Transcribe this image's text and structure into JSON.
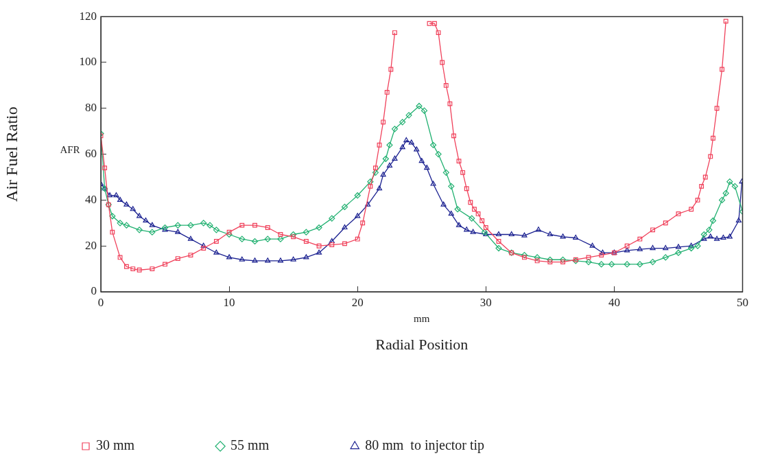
{
  "chart_data": {
    "type": "line",
    "xlabel": "Radial Position",
    "ylabel": "Air Fuel Ratio",
    "annotations": [
      "AFR",
      "mm"
    ],
    "xlim": [
      0,
      50
    ],
    "xticks": [
      0,
      10,
      20,
      30,
      40,
      50
    ],
    "ylim": [
      0,
      120
    ],
    "yticks": [
      0,
      20,
      40,
      60,
      80,
      100,
      120
    ],
    "grid": false,
    "legend": "bottom",
    "line_style": "solid",
    "series": [
      {
        "name": "30 mm",
        "color": "#f0405a",
        "marker": "square",
        "x": [
          0,
          0.3,
          0.6,
          0.9,
          1.5,
          2,
          2.5,
          3,
          4,
          5,
          6,
          7,
          8,
          9,
          10,
          11,
          12,
          13,
          14,
          15,
          16,
          17,
          18,
          19,
          20,
          20.4,
          21,
          21.4,
          21.7,
          22,
          22.3,
          22.6,
          22.9,
          24,
          25.6,
          26,
          26.3,
          26.6,
          26.9,
          27.2,
          27.5,
          27.9,
          28.2,
          28.5,
          28.8,
          29.1,
          29.4,
          29.7,
          30,
          31,
          32,
          33,
          34,
          35,
          36,
          37,
          38,
          39,
          40,
          41,
          42,
          43,
          44,
          45,
          46,
          46.5,
          46.8,
          47.1,
          47.5,
          47.7,
          48,
          48.4,
          48.7
        ],
        "values": [
          68,
          54,
          38,
          26,
          15,
          11,
          10,
          9.5,
          10,
          12,
          14.5,
          16,
          19,
          22,
          26,
          29,
          29,
          28,
          25,
          24,
          22,
          20,
          20.5,
          21,
          23,
          30,
          46,
          54,
          64,
          74,
          87,
          97,
          113,
          null,
          117,
          117,
          113,
          100,
          90,
          82,
          68,
          57,
          52,
          45,
          39,
          36,
          34,
          31,
          28,
          22,
          17,
          15,
          13.5,
          13,
          13,
          14,
          15,
          16,
          17,
          20,
          23,
          27,
          30,
          34,
          36,
          40,
          46,
          50,
          59,
          67,
          80,
          97,
          118
        ]
      },
      {
        "name": "55 mm",
        "color": "#20b070",
        "marker": "diamond",
        "x": [
          0,
          0.3,
          0.6,
          0.9,
          1.5,
          2,
          3,
          4,
          5,
          6,
          7,
          8,
          8.5,
          9,
          10,
          11,
          12,
          13,
          14,
          15,
          16,
          17,
          18,
          19,
          20,
          21,
          21.4,
          22.2,
          22.5,
          22.9,
          23.5,
          24,
          24.8,
          25.2,
          25.9,
          26.3,
          26.9,
          27.3,
          27.8,
          28.9,
          29.9,
          31,
          32,
          33,
          34,
          35,
          36,
          37,
          38,
          39,
          39.8,
          41,
          42,
          43,
          44,
          45,
          46,
          46.5,
          47,
          47.4,
          47.7,
          48.4,
          48.7,
          49,
          49.4,
          50
        ],
        "values": [
          69,
          45,
          38,
          33,
          30,
          29,
          27,
          26,
          28,
          29,
          29,
          30,
          29,
          27,
          25,
          23,
          22,
          23,
          23,
          25,
          26,
          28,
          32,
          37,
          42,
          48,
          52,
          58,
          64,
          71,
          74,
          77,
          81,
          79,
          64,
          60,
          52,
          46,
          36,
          32,
          26,
          19,
          17,
          16,
          15,
          14,
          14,
          13.5,
          13,
          12,
          12,
          12,
          12,
          13,
          15,
          17,
          19,
          20,
          25,
          27,
          31,
          40,
          43,
          48,
          46,
          35
        ]
      },
      {
        "name": "80 mm  to injector tip",
        "color": "#1a2090",
        "marker": "triangle",
        "x": [
          0,
          0.3,
          0.7,
          1.2,
          1.5,
          2,
          2.5,
          3,
          3.5,
          4,
          5,
          6,
          7,
          8,
          9,
          10,
          11,
          12,
          13,
          14,
          15,
          16,
          17,
          18,
          19,
          20,
          20.8,
          21.7,
          22,
          22.5,
          22.9,
          23.5,
          23.8,
          24.2,
          24.6,
          25,
          25.4,
          25.9,
          26.7,
          27.3,
          27.9,
          28.5,
          29,
          30,
          31,
          32,
          33,
          34.1,
          35,
          36,
          37,
          38.3,
          39.1,
          40,
          41,
          42,
          43,
          44,
          45,
          46,
          47,
          47.5,
          48,
          48.5,
          49,
          49.7,
          49.95
        ],
        "values": [
          47,
          45,
          42,
          42,
          40,
          38,
          36,
          33,
          31,
          29,
          27,
          26,
          23,
          20,
          17,
          15,
          14,
          13.5,
          13.5,
          13.5,
          14,
          15,
          17,
          22,
          28,
          33,
          38,
          45,
          51,
          55,
          58,
          63,
          66,
          65,
          62,
          57,
          54,
          47,
          38,
          34,
          29,
          27,
          26,
          25,
          25,
          25,
          24.5,
          27,
          25,
          24,
          23.5,
          20,
          17,
          17,
          18,
          18.5,
          19,
          19,
          19.5,
          20,
          23,
          24,
          23,
          23.5,
          24,
          31,
          48
        ]
      }
    ]
  }
}
